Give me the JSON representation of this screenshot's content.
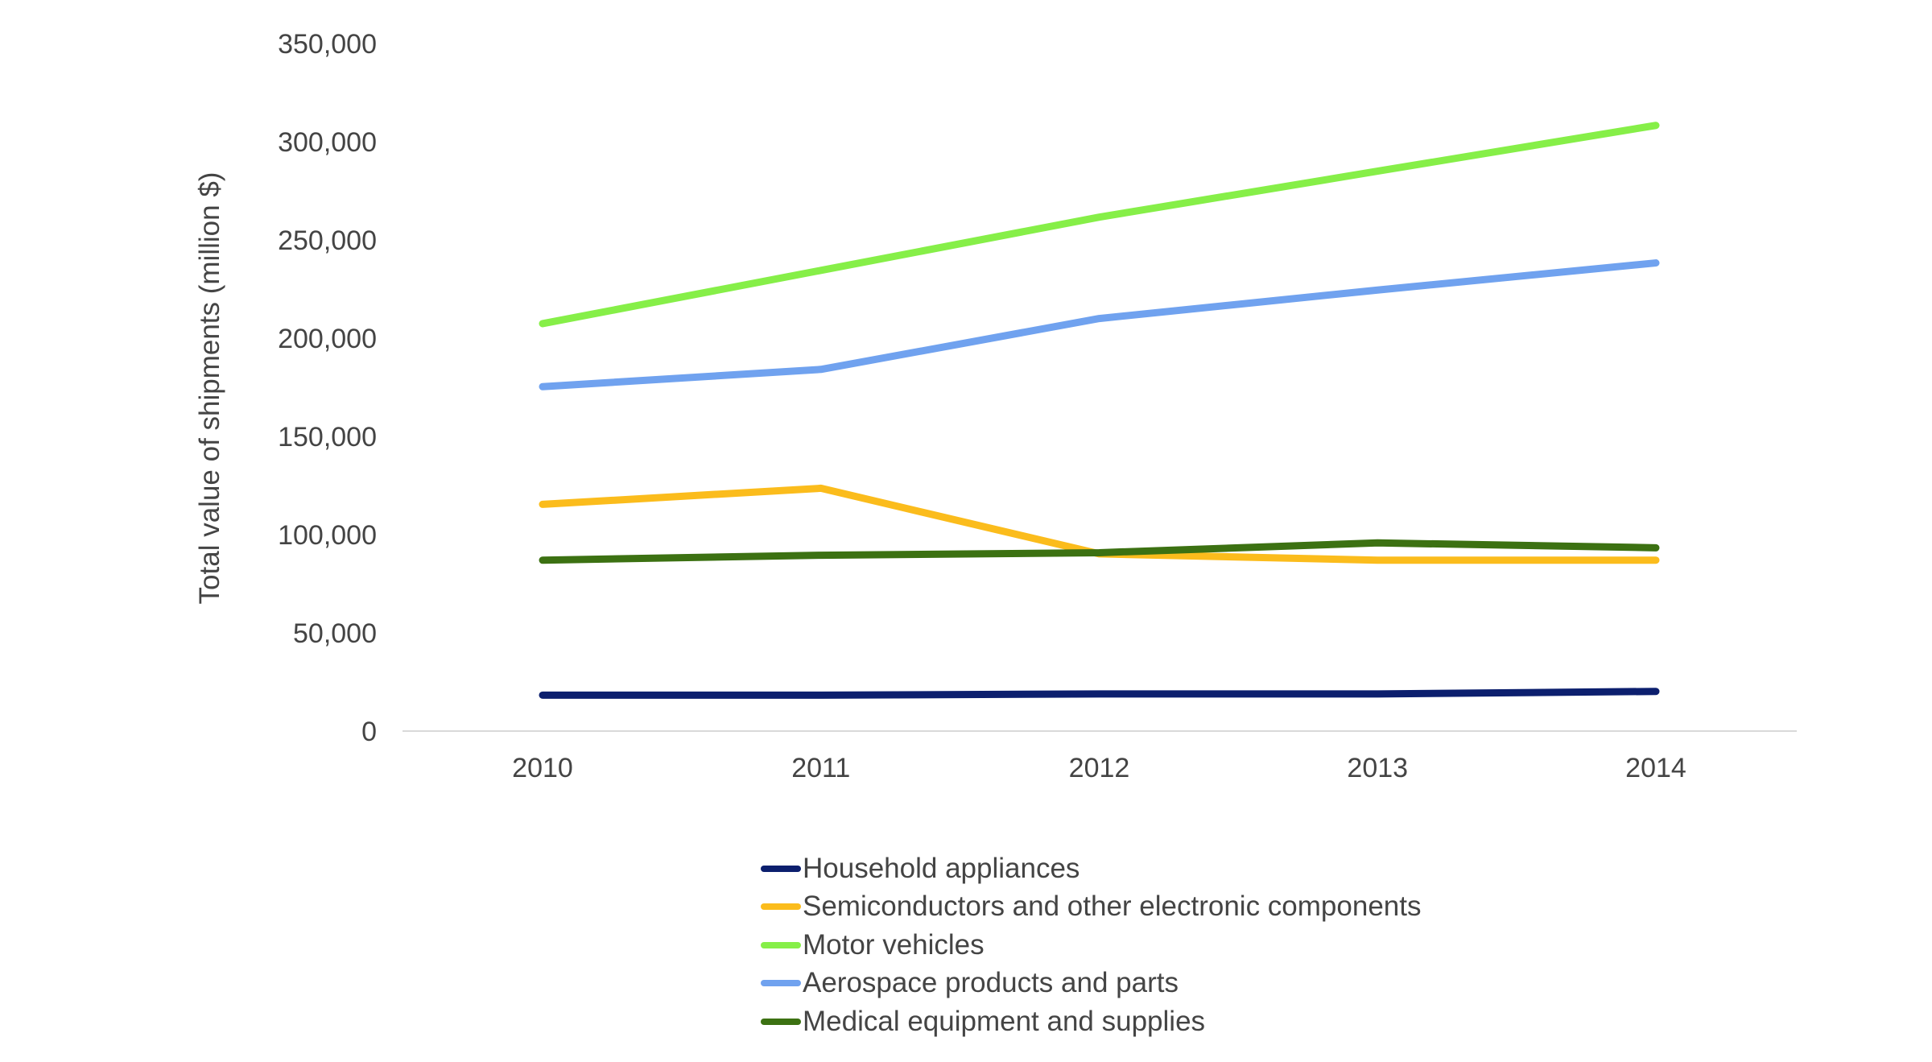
{
  "chart_data": {
    "type": "line",
    "title": "",
    "xlabel": "",
    "ylabel": "Total value of shipments (million $)",
    "categories": [
      "2010",
      "2011",
      "2012",
      "2013",
      "2014"
    ],
    "ylim": [
      0,
      350000
    ],
    "yticks": [
      0,
      50000,
      100000,
      150000,
      200000,
      250000,
      300000,
      350000
    ],
    "ytick_labels": [
      "0",
      "50,000",
      "100,000",
      "150,000",
      "200,000",
      "250,000",
      "300,000",
      "350,000"
    ],
    "grid": false,
    "legend_position": "bottom",
    "series": [
      {
        "name": "Household appliances",
        "color": "#0c1f6e",
        "values": [
          18300,
          18300,
          18900,
          18900,
          20200
        ]
      },
      {
        "name": "Semiconductors and other electronic components",
        "color": "#fbbc1c",
        "values": [
          115400,
          123600,
          90200,
          87000,
          87000
        ]
      },
      {
        "name": "Motor vehicles",
        "color": "#86ef48",
        "values": [
          207400,
          234500,
          261600,
          285000,
          308300
        ]
      },
      {
        "name": "Aerospace products and parts",
        "color": "#70a2ef",
        "values": [
          175300,
          184100,
          210000,
          224500,
          238300
        ]
      },
      {
        "name": "Medical equipment and supplies",
        "color": "#3c7112",
        "values": [
          87000,
          89500,
          90800,
          95800,
          93300
        ]
      }
    ]
  }
}
